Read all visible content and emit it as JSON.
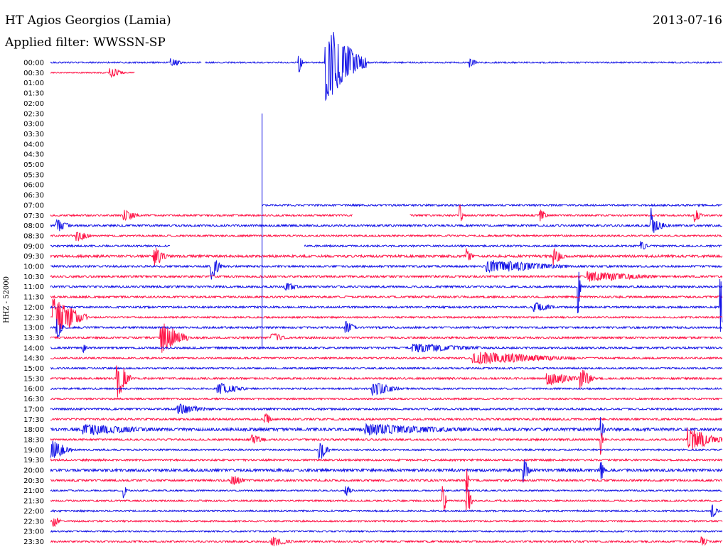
{
  "header": {
    "station": "HT Agios Georgios (Lamia)",
    "filter": "Applied filter: WWSSN-SP",
    "date": "2013-07-16",
    "channel": "HHZ - 52000"
  },
  "colors": {
    "blue": "#1414e6",
    "red": "#ff1447"
  },
  "chart_data": {
    "type": "line",
    "title": "HT Agios Georgios (Lamia)",
    "subtitle": "Applied filter: WWSSN-SP",
    "ylabel": "HHZ - 52000",
    "rows": [
      {
        "label": "00:00",
        "color": "blue",
        "segments": [
          [
            0,
            0.225
          ],
          [
            0.23,
            1
          ]
        ],
        "noise": 0.6,
        "events": [
          {
            "x": 0.18,
            "a": 0.6,
            "d": 0.015
          },
          {
            "x": 0.37,
            "a": 1.4,
            "d": 0.006
          },
          {
            "x": 0.41,
            "a": 5.0,
            "d": 0.06
          },
          {
            "x": 0.625,
            "a": 0.6,
            "d": 0.01
          }
        ]
      },
      {
        "label": "00:30",
        "color": "red",
        "segments": [
          [
            0,
            0.126
          ]
        ],
        "noise": 0.5,
        "events": [
          {
            "x": 0.09,
            "a": 0.6,
            "d": 0.02
          }
        ]
      },
      {
        "label": "01:00",
        "color": "blue",
        "segments": [],
        "noise": 0,
        "events": []
      },
      {
        "label": "01:30",
        "color": "red",
        "segments": [],
        "noise": 0,
        "events": []
      },
      {
        "label": "02:00",
        "color": "blue",
        "segments": [],
        "noise": 0,
        "events": []
      },
      {
        "label": "02:30",
        "color": "red",
        "segments": [],
        "noise": 0,
        "events": []
      },
      {
        "label": "03:00",
        "color": "blue",
        "segments": [],
        "noise": 0,
        "events": []
      },
      {
        "label": "03:30",
        "color": "red",
        "segments": [],
        "noise": 0,
        "events": []
      },
      {
        "label": "04:00",
        "color": "blue",
        "segments": [],
        "noise": 0,
        "events": []
      },
      {
        "label": "04:30",
        "color": "red",
        "segments": [],
        "noise": 0,
        "events": []
      },
      {
        "label": "05:00",
        "color": "blue",
        "segments": [],
        "noise": 0,
        "events": []
      },
      {
        "label": "05:30",
        "color": "red",
        "segments": [],
        "noise": 0,
        "events": []
      },
      {
        "label": "06:00",
        "color": "blue",
        "segments": [],
        "noise": 0,
        "events": []
      },
      {
        "label": "06:30",
        "color": "red",
        "segments": [],
        "noise": 0,
        "events": []
      },
      {
        "label": "07:00",
        "color": "blue",
        "segments": [
          [
            0.315,
            1
          ]
        ],
        "noise": 0.8,
        "events": []
      },
      {
        "label": "07:30",
        "color": "red",
        "segments": [
          [
            0,
            0.45
          ],
          [
            0.535,
            1
          ]
        ],
        "noise": 0.7,
        "events": [
          {
            "x": 0.11,
            "a": 0.8,
            "d": 0.02
          },
          {
            "x": 0.61,
            "a": 1.5,
            "d": 0.004
          },
          {
            "x": 0.73,
            "a": 0.8,
            "d": 0.01
          },
          {
            "x": 0.96,
            "a": 0.8,
            "d": 0.01
          }
        ]
      },
      {
        "label": "08:00",
        "color": "blue",
        "segments": [
          [
            0,
            1
          ]
        ],
        "noise": 0.8,
        "events": [
          {
            "x": 0.01,
            "a": 0.8,
            "d": 0.02
          },
          {
            "x": 0.895,
            "a": 1.8,
            "d": 0.004
          },
          {
            "x": 0.9,
            "a": 0.6,
            "d": 0.02
          }
        ]
      },
      {
        "label": "08:30",
        "color": "red",
        "segments": [
          [
            0,
            1
          ]
        ],
        "noise": 0.7,
        "events": [
          {
            "x": 0.04,
            "a": 0.7,
            "d": 0.02
          }
        ]
      },
      {
        "label": "09:00",
        "color": "blue",
        "segments": [
          [
            0,
            0.178
          ],
          [
            0.378,
            1
          ]
        ],
        "noise": 0.8,
        "events": [
          {
            "x": 0.88,
            "a": 0.6,
            "d": 0.01
          }
        ]
      },
      {
        "label": "09:30",
        "color": "red",
        "segments": [
          [
            0,
            1
          ]
        ],
        "noise": 1.0,
        "events": [
          {
            "x": 0.155,
            "a": 1.2,
            "d": 0.02
          },
          {
            "x": 0.75,
            "a": 1.0,
            "d": 0.015
          },
          {
            "x": 0.62,
            "a": 0.8,
            "d": 0.01
          }
        ]
      },
      {
        "label": "10:00",
        "color": "blue",
        "segments": [
          [
            0,
            1
          ]
        ],
        "noise": 0.8,
        "events": [
          {
            "x": 0.24,
            "a": 1.6,
            "d": 0.015
          },
          {
            "x": 0.65,
            "a": 0.8,
            "d": 0.12
          }
        ]
      },
      {
        "label": "10:30",
        "color": "red",
        "segments": [
          [
            0,
            1
          ]
        ],
        "noise": 0.8,
        "events": [
          {
            "x": 0.8,
            "a": 0.6,
            "d": 0.1
          }
        ]
      },
      {
        "label": "11:00",
        "color": "blue",
        "segments": [
          [
            0,
            1
          ]
        ],
        "noise": 0.8,
        "events": [
          {
            "x": 0.786,
            "a": 3.0,
            "d": 0.004
          },
          {
            "x": 0.35,
            "a": 0.6,
            "d": 0.02
          }
        ]
      },
      {
        "label": "11:30",
        "color": "red",
        "segments": [
          [
            0,
            1
          ]
        ],
        "noise": 0.8,
        "events": []
      },
      {
        "label": "12:00",
        "color": "blue",
        "segments": [
          [
            0,
            1
          ]
        ],
        "noise": 0.8,
        "events": [
          {
            "x": 0.998,
            "a": 3.5,
            "d": 0.004
          },
          {
            "x": 0.72,
            "a": 0.6,
            "d": 0.03
          }
        ]
      },
      {
        "label": "12:30",
        "color": "red",
        "segments": [
          [
            0,
            1
          ]
        ],
        "noise": 0.7,
        "events": [
          {
            "x": 0.005,
            "a": 2.4,
            "d": 0.05
          }
        ]
      },
      {
        "label": "13:00",
        "color": "blue",
        "segments": [
          [
            0,
            1
          ]
        ],
        "noise": 0.8,
        "events": [
          {
            "x": 0.44,
            "a": 0.8,
            "d": 0.015
          },
          {
            "x": 0.01,
            "a": 1.6,
            "d": 0.01
          }
        ]
      },
      {
        "label": "13:30",
        "color": "red",
        "segments": [
          [
            0,
            1
          ]
        ],
        "noise": 0.8,
        "events": [
          {
            "x": 0.165,
            "a": 2.0,
            "d": 0.04
          },
          {
            "x": 0.33,
            "a": 0.6,
            "d": 0.02
          }
        ]
      },
      {
        "label": "14:00",
        "color": "blue",
        "segments": [
          [
            0,
            1
          ]
        ],
        "noise": 0.8,
        "events": [
          {
            "x": 0.05,
            "a": 0.6,
            "d": 0.005
          },
          {
            "x": 0.54,
            "a": 0.5,
            "d": 0.1
          }
        ]
      },
      {
        "label": "14:30",
        "color": "red",
        "segments": [
          [
            0,
            1
          ]
        ],
        "noise": 0.7,
        "events": [
          {
            "x": 0.63,
            "a": 0.8,
            "d": 0.15
          }
        ]
      },
      {
        "label": "15:00",
        "color": "blue",
        "segments": [
          [
            0,
            1
          ]
        ],
        "noise": 0.7,
        "events": []
      },
      {
        "label": "15:30",
        "color": "red",
        "segments": [
          [
            0,
            1
          ]
        ],
        "noise": 0.8,
        "events": [
          {
            "x": 0.1,
            "a": 2.4,
            "d": 0.02
          },
          {
            "x": 0.74,
            "a": 0.8,
            "d": 0.05
          },
          {
            "x": 0.79,
            "a": 1.2,
            "d": 0.02
          }
        ]
      },
      {
        "label": "16:00",
        "color": "blue",
        "segments": [
          [
            0,
            1
          ]
        ],
        "noise": 0.7,
        "events": [
          {
            "x": 0.25,
            "a": 0.7,
            "d": 0.04
          },
          {
            "x": 0.48,
            "a": 0.8,
            "d": 0.04
          }
        ]
      },
      {
        "label": "16:30",
        "color": "red",
        "segments": [
          [
            0,
            1
          ]
        ],
        "noise": 0.7,
        "events": []
      },
      {
        "label": "17:00",
        "color": "blue",
        "segments": [
          [
            0,
            1
          ]
        ],
        "noise": 0.8,
        "events": [
          {
            "x": 0.19,
            "a": 0.7,
            "d": 0.04
          }
        ]
      },
      {
        "label": "17:30",
        "color": "red",
        "segments": [
          [
            0,
            1
          ]
        ],
        "noise": 0.8,
        "events": [
          {
            "x": 0.32,
            "a": 0.8,
            "d": 0.01
          }
        ]
      },
      {
        "label": "18:00",
        "color": "blue",
        "segments": [
          [
            0,
            1
          ]
        ],
        "noise": 1.2,
        "events": [
          {
            "x": 0.05,
            "a": 0.6,
            "d": 0.1
          },
          {
            "x": 0.47,
            "a": 0.6,
            "d": 0.15
          },
          {
            "x": 0.82,
            "a": 1.6,
            "d": 0.005
          }
        ]
      },
      {
        "label": "18:30",
        "color": "red",
        "segments": [
          [
            0,
            1
          ]
        ],
        "noise": 0.8,
        "events": [
          {
            "x": 0.95,
            "a": 1.4,
            "d": 0.05
          },
          {
            "x": 0.3,
            "a": 0.6,
            "d": 0.02
          },
          {
            "x": 0.82,
            "a": 1.8,
            "d": 0.003
          }
        ]
      },
      {
        "label": "19:00",
        "color": "blue",
        "segments": [
          [
            0,
            1
          ]
        ],
        "noise": 0.7,
        "events": [
          {
            "x": 0.002,
            "a": 1.2,
            "d": 0.03
          },
          {
            "x": 0.4,
            "a": 1.4,
            "d": 0.015
          }
        ]
      },
      {
        "label": "19:30",
        "color": "red",
        "segments": [
          [
            0,
            1
          ]
        ],
        "noise": 0.8,
        "events": []
      },
      {
        "label": "20:00",
        "color": "blue",
        "segments": [
          [
            0,
            1
          ]
        ],
        "noise": 1.1,
        "events": [
          {
            "x": 0.705,
            "a": 1.4,
            "d": 0.01
          },
          {
            "x": 0.82,
            "a": 1.2,
            "d": 0.005
          }
        ]
      },
      {
        "label": "20:30",
        "color": "red",
        "segments": [
          [
            0,
            1
          ]
        ],
        "noise": 0.8,
        "events": [
          {
            "x": 0.27,
            "a": 0.7,
            "d": 0.02
          },
          {
            "x": 0.62,
            "a": 2.0,
            "d": 0.003
          }
        ]
      },
      {
        "label": "21:00",
        "color": "blue",
        "segments": [
          [
            0,
            1
          ]
        ],
        "noise": 0.6,
        "events": [
          {
            "x": 0.11,
            "a": 0.7,
            "d": 0.005
          },
          {
            "x": 0.44,
            "a": 0.6,
            "d": 0.01
          }
        ]
      },
      {
        "label": "21:30",
        "color": "red",
        "segments": [
          [
            0,
            1
          ]
        ],
        "noise": 0.7,
        "events": [
          {
            "x": 0.585,
            "a": 2.0,
            "d": 0.005
          },
          {
            "x": 0.62,
            "a": 2.5,
            "d": 0.008
          }
        ]
      },
      {
        "label": "22:00",
        "color": "blue",
        "segments": [
          [
            0,
            1
          ]
        ],
        "noise": 0.7,
        "events": [
          {
            "x": 0.985,
            "a": 0.8,
            "d": 0.01
          }
        ]
      },
      {
        "label": "22:30",
        "color": "red",
        "segments": [
          [
            0,
            1
          ]
        ],
        "noise": 0.7,
        "events": [
          {
            "x": 0.005,
            "a": 0.7,
            "d": 0.01
          }
        ]
      },
      {
        "label": "23:00",
        "color": "blue",
        "segments": [
          [
            0,
            1
          ]
        ],
        "noise": 0.6,
        "events": []
      },
      {
        "label": "23:30",
        "color": "red",
        "segments": [
          [
            0,
            1
          ]
        ],
        "noise": 0.7,
        "events": [
          {
            "x": 0.33,
            "a": 0.6,
            "d": 0.03
          },
          {
            "x": 0.97,
            "a": 0.6,
            "d": 0.01
          }
        ]
      }
    ],
    "spikes": [
      {
        "row_from": 5,
        "row_to": 28,
        "x": 0.315,
        "color": "blue"
      }
    ]
  }
}
